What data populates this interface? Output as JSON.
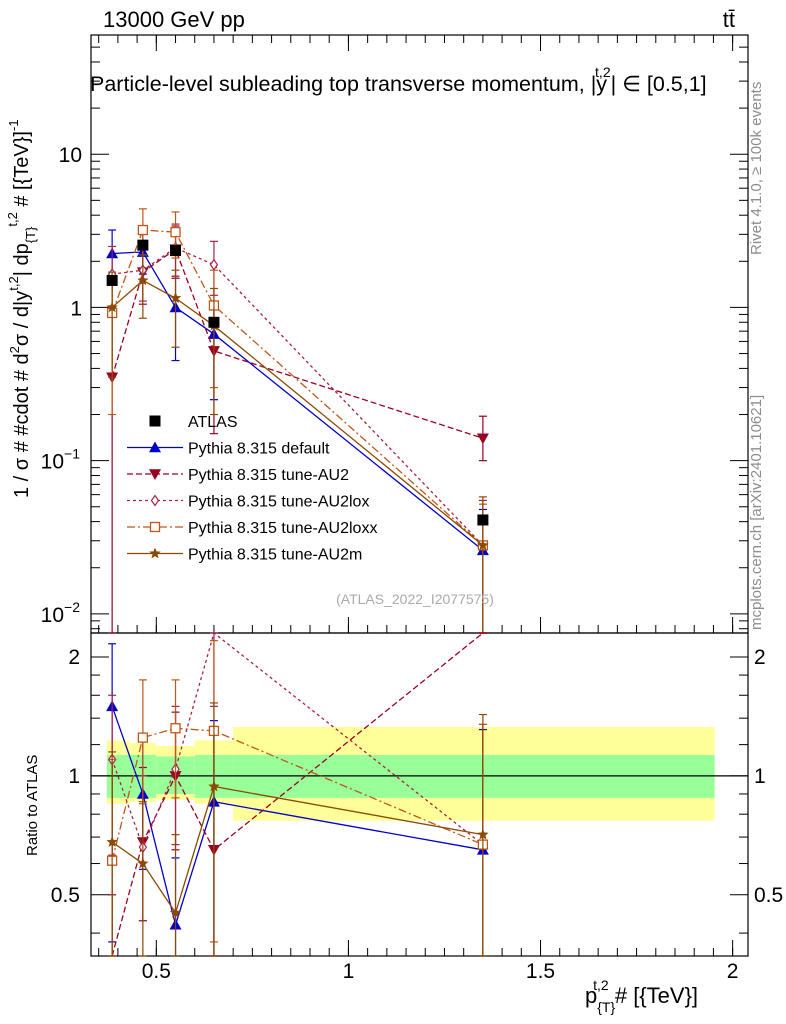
{
  "header": {
    "energy_label": "13000 GeV pp",
    "process_label": "tt̄"
  },
  "side_labels": {
    "rivet": "Rivet 4.1.0, ≥ 100k events",
    "source": "mcplots.cern.ch [arXiv:2401.10621]"
  },
  "chart_data": {
    "type": "line",
    "title": "Particle-level subleading top transverse momentum, |y^{t,2}| ∈ [0.5,1]",
    "title_main": "Particle-level subleading top transverse momentum, |",
    "title_var": "y",
    "title_sup": "t,2",
    "title_tail": "| ∈ [0.5,1]",
    "watermark": "(ATLAS_2022_I2077575)",
    "ylabel": "1 / σ # #cdot # d²σ / d|y^{t,2}| dp_{T}^{t,2} # [{TeV}]^{-1}",
    "ylabel_main": "1 / σ # #cdot # d",
    "ylabel_sup1": "2",
    "ylabel_mid": "σ / d|y",
    "ylabel_sup2": "t,2",
    "ylabel_mid2": "| dp",
    "ylabel_sub": "{T}",
    "ylabel_sup3": "t,2",
    "ylabel_tail": " # [{TeV}]",
    "ylabel_sup4": "-1",
    "xlabel": "p_{T}^{t,2} # [{TeV}]",
    "xlabel_p": "p",
    "xlabel_sub": "{T}",
    "xlabel_sup": "t,2",
    "xlabel_tail": " # [{TeV}]",
    "ratio_ylabel": "Ratio to ATLAS",
    "xlim": [
      0.33,
      2.04
    ],
    "ylim": [
      0.0075,
      60
    ],
    "ratio_ylim": [
      0.35,
      2.3
    ],
    "x_ticks": [
      {
        "v": 0.5,
        "label": "0.5"
      },
      {
        "v": 1,
        "label": "1"
      },
      {
        "v": 1.5,
        "label": "1.5"
      },
      {
        "v": 2,
        "label": "2"
      }
    ],
    "y_ticks": [
      {
        "v": 10,
        "base": "10",
        "exp": ""
      },
      {
        "v": 1,
        "base": "1",
        "exp": ""
      },
      {
        "v": 0.1,
        "base": "10",
        "exp": "−1"
      },
      {
        "v": 0.01,
        "base": "10",
        "exp": "−2"
      }
    ],
    "ratio_ticks": [
      {
        "v": 0.5,
        "label": "0.5"
      },
      {
        "v": 1,
        "label": "1"
      },
      {
        "v": 2,
        "label": "2"
      }
    ],
    "bins": [
      {
        "lo": 0.34,
        "hi": 0.43
      },
      {
        "lo": 0.43,
        "hi": 0.5
      },
      {
        "lo": 0.5,
        "hi": 0.6
      },
      {
        "lo": 0.6,
        "hi": 0.7
      },
      {
        "lo": 0.7,
        "hi": 2.0
      }
    ],
    "data": {
      "name": "ATLAS",
      "x": [
        0.385,
        0.465,
        0.55,
        0.65,
        1.35
      ],
      "y": [
        1.5,
        2.55,
        2.35,
        0.8,
        0.041
      ],
      "band_inner": [
        [
          0.88,
          1.13
        ],
        [
          0.88,
          1.13
        ],
        [
          0.9,
          1.12
        ],
        [
          0.88,
          1.13
        ],
        [
          0.88,
          1.13
        ]
      ],
      "band_outer": [
        [
          0.85,
          1.23
        ],
        [
          0.86,
          1.21
        ],
        [
          0.87,
          1.19
        ],
        [
          0.85,
          1.23
        ],
        [
          0.77,
          1.33
        ]
      ]
    },
    "series": [
      {
        "name": "Pythia 8.315 default",
        "color": "#0000cc",
        "marker": "triangle-up",
        "dash": "",
        "x": [
          0.385,
          0.465,
          0.55,
          0.65,
          1.35
        ],
        "y": [
          2.25,
          2.3,
          1.0,
          0.67,
          0.026
        ],
        "err": [
          [
            1.6,
            3.2
          ],
          [
            1.65,
            3.0
          ],
          [
            0.45,
            1.55
          ],
          [
            0.25,
            1.1
          ],
          [
            0.004,
            0.048
          ]
        ],
        "ratio": [
          1.5,
          0.9,
          0.42,
          0.86,
          0.65
        ],
        "ratio_err": [
          [
            0.38,
            2.16
          ],
          [
            0.58,
            1.22
          ],
          [
            0.35,
            0.62
          ],
          [
            0.35,
            1.38
          ],
          [
            0.35,
            1.31
          ]
        ]
      },
      {
        "name": "Pythia 8.315 tune-AU2",
        "color": "#990022",
        "marker": "triangle-down",
        "dash": "6,3",
        "x": [
          0.385,
          0.465,
          0.55,
          0.65,
          1.35
        ],
        "y": [
          0.35,
          1.7,
          2.4,
          0.52,
          0.14
        ],
        "err": [
          [
            0.005,
            1.0
          ],
          [
            1.05,
            2.6
          ],
          [
            1.6,
            3.4
          ],
          [
            0.15,
            1.0
          ],
          [
            0.1,
            0.195
          ]
        ],
        "ratio": [
          0.23,
          0.68,
          1.0,
          0.65,
          3.4
        ],
        "ratio_err": [
          [
            0.2,
            0.5
          ],
          [
            0.43,
            1.05
          ],
          [
            0.65,
            1.45
          ],
          [
            0.35,
            1.3
          ],
          [
            2.6,
            4.6
          ]
        ]
      },
      {
        "name": "Pythia 8.315 tune-AU2lox",
        "color": "#aa2244",
        "marker": "diamond-open",
        "dash": "3,3",
        "x": [
          0.385,
          0.465,
          0.55,
          0.65,
          1.35
        ],
        "y": [
          1.65,
          1.75,
          2.45,
          1.9,
          0.028
        ],
        "err": [
          [
            1.0,
            2.5
          ],
          [
            1.1,
            2.7
          ],
          [
            1.55,
            3.5
          ],
          [
            1.2,
            2.7
          ],
          [
            0.004,
            0.055
          ]
        ],
        "ratio": [
          1.1,
          0.66,
          1.04,
          2.4,
          0.67
        ],
        "ratio_err": [
          [
            0.63,
            1.6
          ],
          [
            0.43,
            1.0
          ],
          [
            0.67,
            1.5
          ],
          [
            1.5,
            3.4
          ],
          [
            0.35,
            1.35
          ]
        ]
      },
      {
        "name": "Pythia 8.315 tune-AU2loxx",
        "color": "#c0561a",
        "marker": "square-open",
        "dash": "8,3,2,3",
        "x": [
          0.385,
          0.465,
          0.55,
          0.65,
          1.35
        ],
        "y": [
          0.92,
          3.2,
          3.1,
          1.03,
          0.028
        ],
        "err": [
          [
            0.2,
            1.6
          ],
          [
            2.2,
            4.4
          ],
          [
            2.1,
            4.2
          ],
          [
            0.3,
            1.75
          ],
          [
            0.004,
            0.052
          ]
        ],
        "ratio": [
          0.61,
          1.25,
          1.32,
          1.3,
          0.67
        ],
        "ratio_err": [
          [
            0.2,
            1.1
          ],
          [
            0.85,
            1.75
          ],
          [
            0.88,
            1.75
          ],
          [
            0.38,
            2.2
          ],
          [
            0.35,
            1.35
          ]
        ]
      },
      {
        "name": "Pythia 8.315 tune-AU2m",
        "color": "#8b4a00",
        "marker": "star",
        "dash": "",
        "x": [
          0.385,
          0.465,
          0.55,
          0.65,
          1.35
        ],
        "y": [
          1.0,
          1.5,
          1.15,
          0.76,
          0.028
        ],
        "err": [
          [
            0.35,
            1.7
          ],
          [
            0.85,
            2.2
          ],
          [
            0.55,
            1.75
          ],
          [
            0.2,
            1.33
          ],
          [
            0.004,
            0.058
          ]
        ],
        "ratio": [
          0.68,
          0.6,
          0.45,
          0.94,
          0.71
        ],
        "ratio_err": [
          [
            0.23,
            1.15
          ],
          [
            0.35,
            0.86
          ],
          [
            0.35,
            0.71
          ],
          [
            0.32,
            1.53
          ],
          [
            0.35,
            1.43
          ]
        ]
      }
    ]
  }
}
